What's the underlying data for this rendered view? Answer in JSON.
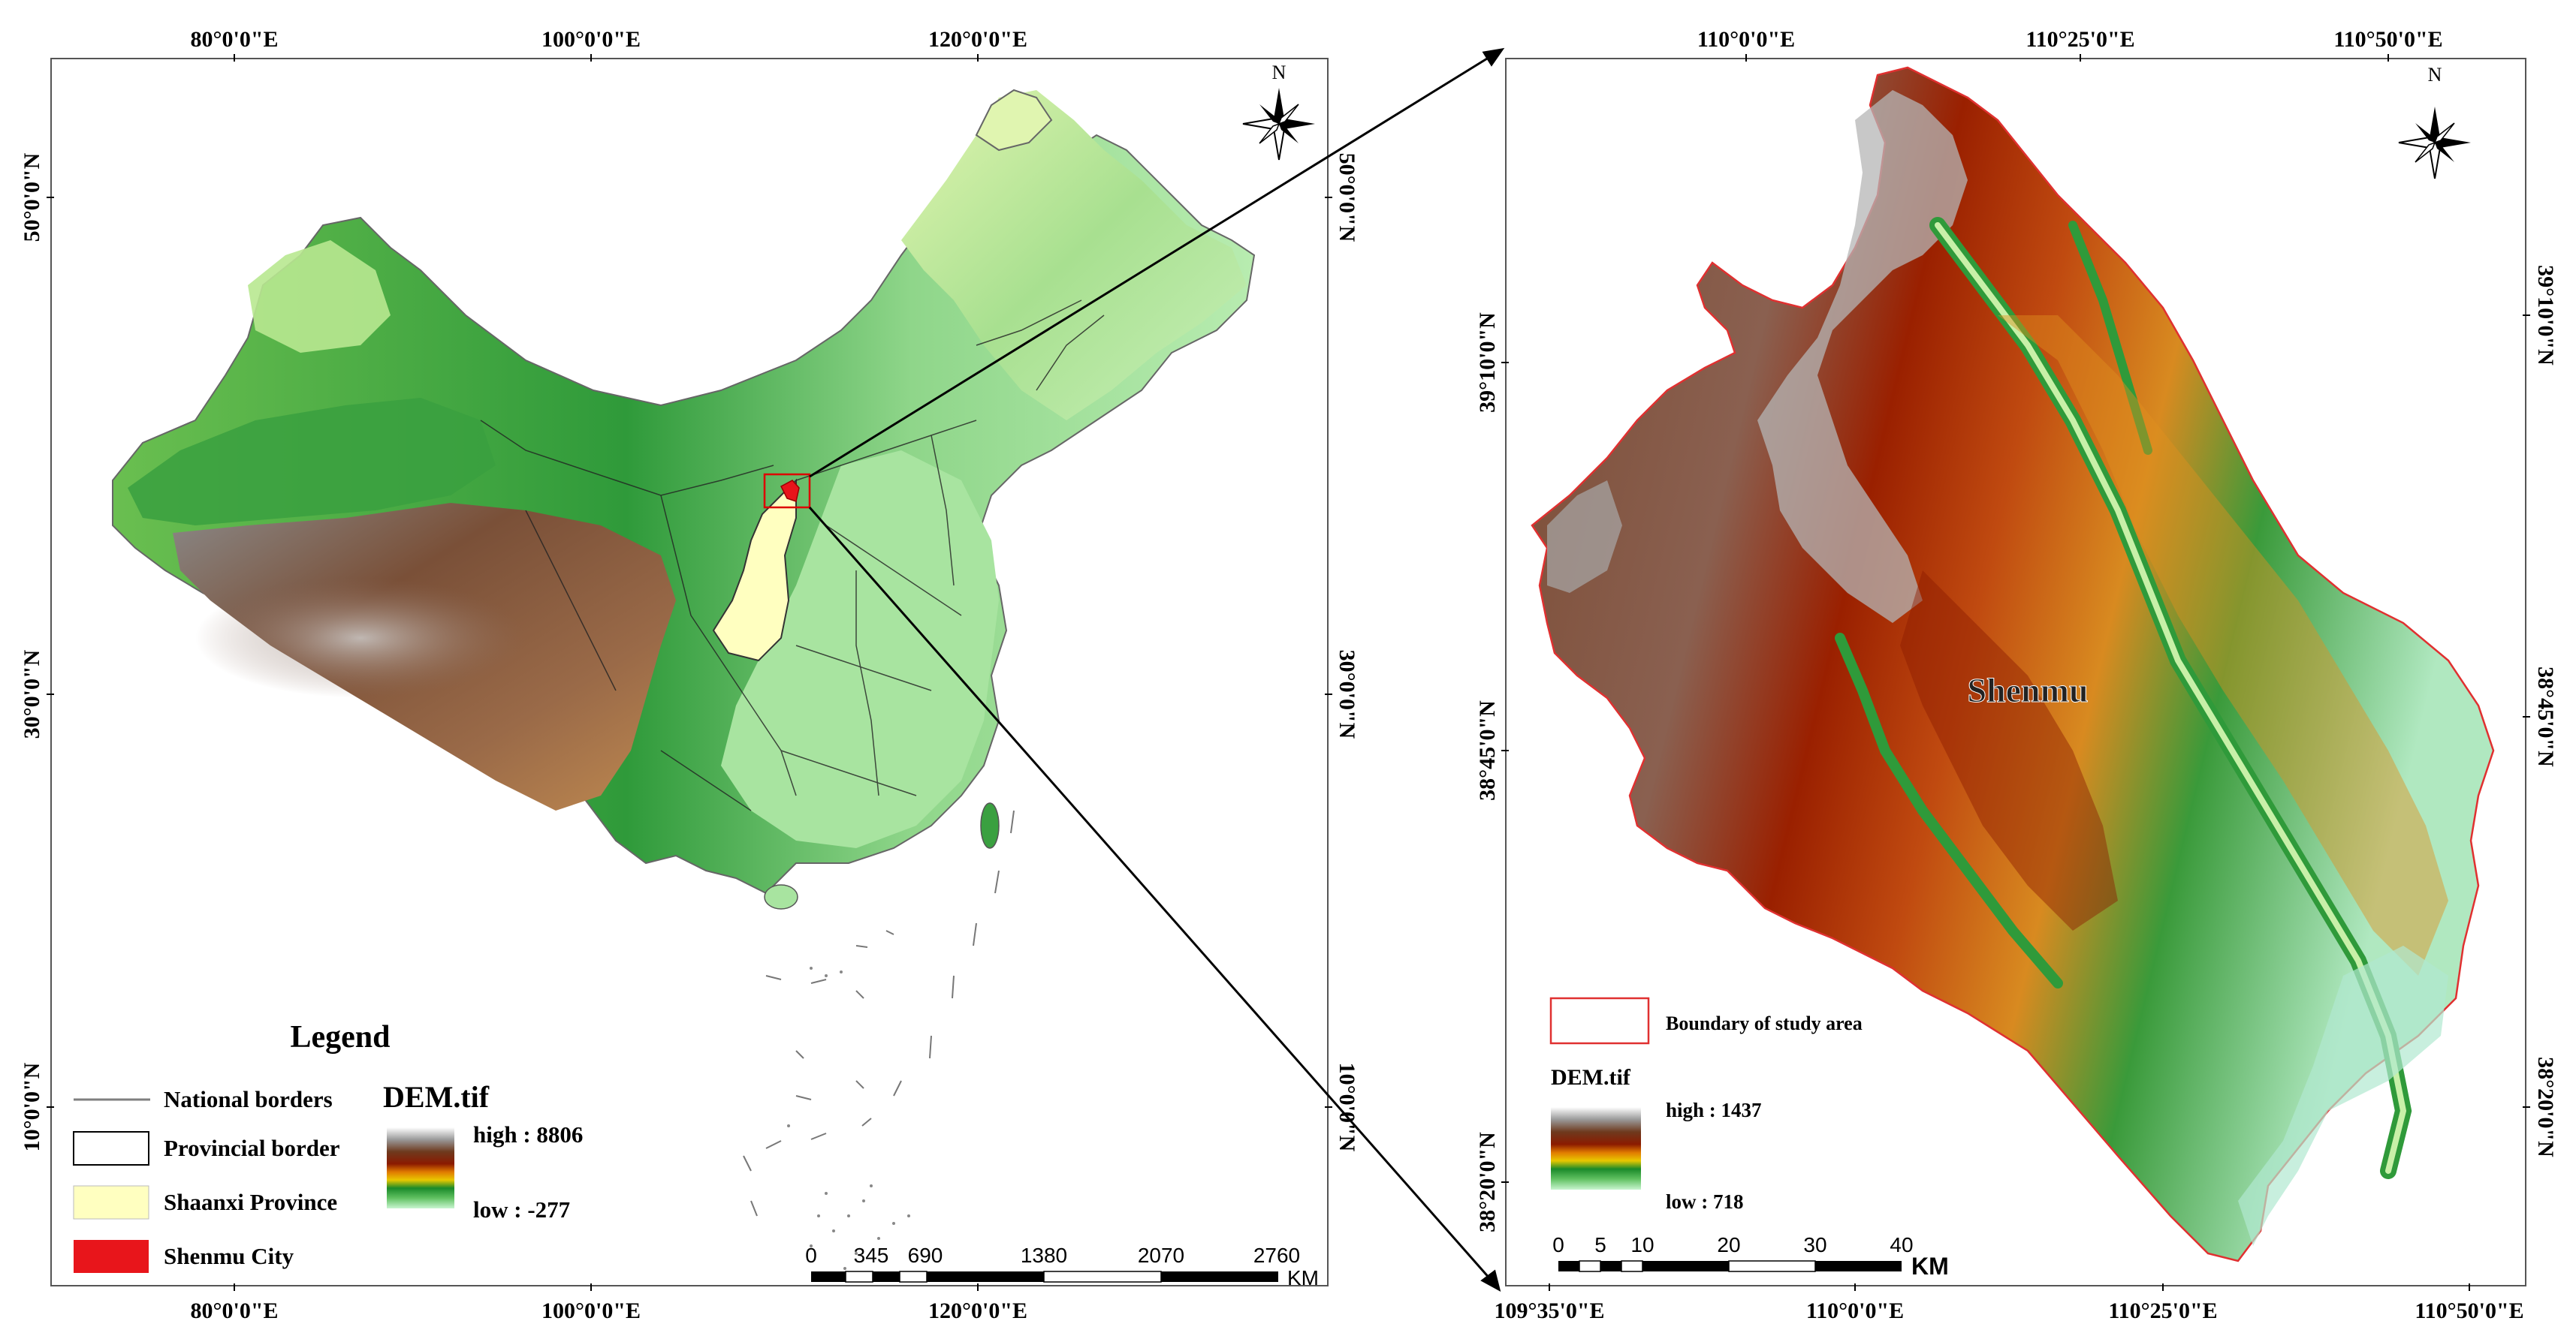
{
  "left_map": {
    "top_lon_labels": [
      "80°0'0\"E",
      "100°0'0\"E",
      "120°0'0\"E"
    ],
    "bottom_lon_labels": [
      "80°0'0\"E",
      "100°0'0\"E",
      "120°0'0\"E"
    ],
    "left_lat_labels": [
      "50°0'0\"N",
      "30°0'0\"N",
      "10°0'0\"N"
    ],
    "right_lat_labels": [
      "50°0'0\"N",
      "30°0'0\"N",
      "10°0'0\"N"
    ],
    "north_letter": "N",
    "legend": {
      "title": "Legend",
      "items": [
        {
          "label": "National borders",
          "symbol": "line",
          "color": "#7f7f7f"
        },
        {
          "label": "Provincial border",
          "symbol": "hollow-box",
          "color": "#000000"
        },
        {
          "label": "Shaanxi Province",
          "symbol": "fill-box",
          "color": "#ffffc0"
        },
        {
          "label": "Shenmu City",
          "symbol": "fill-box",
          "color": "#e8151b"
        }
      ],
      "dem_title": "DEM.tif",
      "dem_high": "high : 8806",
      "dem_low": "low : -277"
    },
    "scale_bar": {
      "ticks": [
        "0",
        "345",
        "690",
        "1380",
        "2070",
        "2760"
      ],
      "unit": "KM"
    }
  },
  "right_map": {
    "top_lon_labels": [
      "110°0'0\"E",
      "110°25'0\"E",
      "110°50'0\"E"
    ],
    "bottom_lon_labels": [
      "109°35'0\"E",
      "110°0'0\"E",
      "110°25'0\"E",
      "110°50'0\"E"
    ],
    "left_lat_labels": [
      "39°10'0\"N",
      "38°45'0\"N",
      "38°20'0\"N"
    ],
    "right_lat_labels": [
      "39°10'0\"N",
      "38°45'0\"N",
      "38°20'0\"N"
    ],
    "north_letter": "N",
    "place_label": "Shenmu",
    "legend": {
      "boundary_label": "Boundary of study area",
      "boundary_color": "#e03030",
      "dem_title": "DEM.tif",
      "dem_high": "high : 1437",
      "dem_low": "low : 718"
    },
    "scale_bar": {
      "ticks": [
        "0",
        "5",
        "10",
        "20",
        "30",
        "40"
      ],
      "unit": "KM"
    }
  },
  "colors": {
    "dem_ramp": [
      "#ffffff",
      "#a0a0a0",
      "#6e3a1e",
      "#8b1a00",
      "#e07a00",
      "#e8c800",
      "#1a8a2a",
      "#5fc060",
      "#b8f0c8"
    ],
    "lowland_green": "#a8e6a0",
    "plateau_brown": "#7a4a30",
    "desert_yellowgreen": "#d8f0a8"
  }
}
